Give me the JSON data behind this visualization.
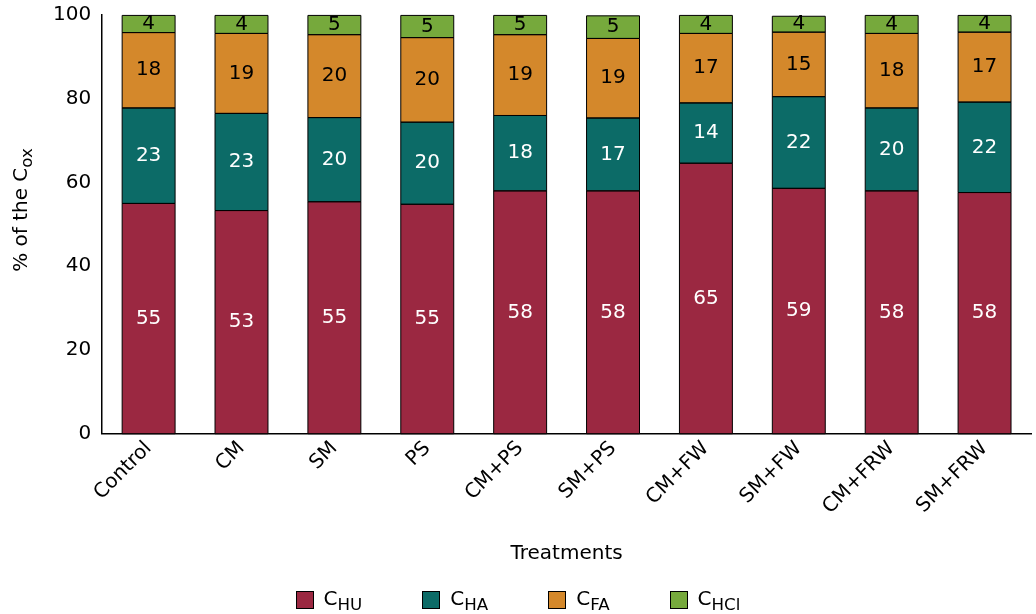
{
  "chart_data": {
    "type": "bar",
    "stacked": true,
    "xlabel": "Treatments",
    "ylabel": "% of the C$_{ox}$",
    "categories": [
      "Control",
      "CM",
      "SM",
      "PS",
      "CM+PS",
      "SM+PS",
      "CM+FW",
      "SM+FW",
      "CM+FRW",
      "SM+FRW"
    ],
    "series": [
      {
        "name": "C$_{HU}$",
        "color": "#9b2841",
        "values": [
          55,
          53.3,
          55.4,
          54.8,
          58,
          58,
          64.6,
          58.6,
          58,
          57.6
        ],
        "value_labels": [
          "55",
          "53",
          "55",
          "55",
          "58",
          "58",
          "65",
          "59",
          "58",
          "58"
        ]
      },
      {
        "name": "C$_{HA}$",
        "color": "#0c6b67",
        "values": [
          22.8,
          23.2,
          20.1,
          19.6,
          18,
          17.4,
          14.4,
          21.9,
          19.8,
          21.6
        ],
        "value_labels": [
          "23",
          "23",
          "20",
          "20",
          "18",
          "17",
          "14",
          "22",
          "20",
          "22"
        ]
      },
      {
        "name": "C$_{FA}$",
        "color": "#d4882b",
        "values": [
          18,
          19.1,
          19.8,
          20.2,
          19.3,
          19,
          16.6,
          15.4,
          17.8,
          16.7
        ],
        "value_labels": [
          "18",
          "19",
          "20",
          "20",
          "19",
          "19",
          "17",
          "15",
          "18",
          "17"
        ]
      },
      {
        "name": "C$_{HCl}$",
        "color": "#76a93c",
        "values": [
          4.1,
          4.3,
          4.6,
          5.3,
          4.6,
          5.4,
          4.3,
          3.8,
          4.3,
          4
        ],
        "value_labels": [
          "4",
          "4",
          "5",
          "5",
          "5",
          "5",
          "4",
          "4",
          "4",
          "4"
        ]
      }
    ],
    "ylim": [
      0,
      100
    ],
    "yticks": [
      0,
      20,
      40,
      60,
      80,
      100
    ],
    "grid": false,
    "legend": "bottom"
  }
}
